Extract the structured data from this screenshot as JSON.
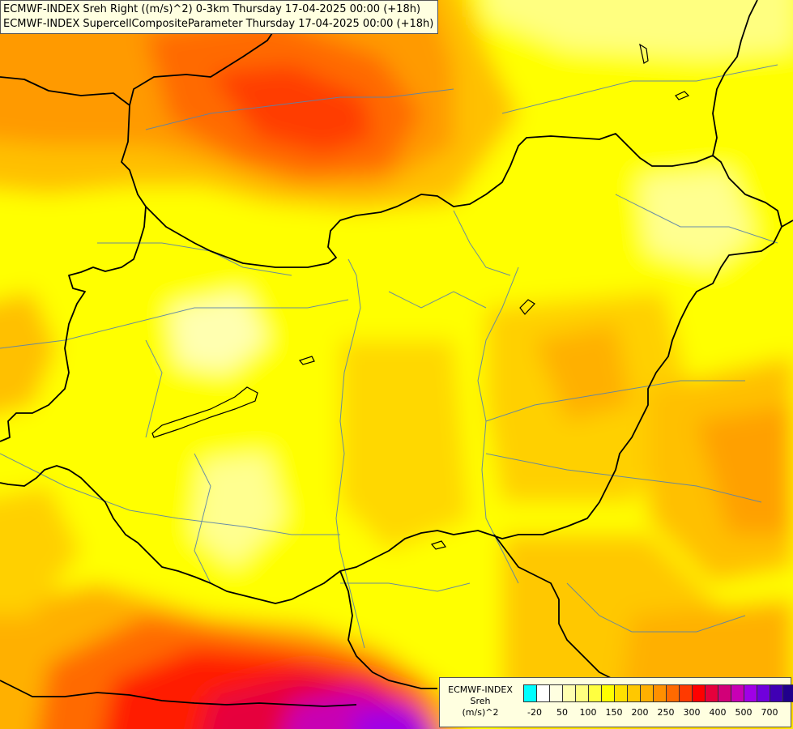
{
  "titles": [
    "ECMWF-INDEX Sreh Right ((m/s)^2) 0-3km Thursday 17-04-2025 00:00 (+18h)",
    "ECMWF-INDEX SupercellCompositeParameter Thursday 17-04-2025 00:00 (+18h)"
  ],
  "legend": {
    "line1": "ECMWF-INDEX",
    "line2": "Sreh",
    "line3": "(m/s)^2",
    "colors": [
      "#00ffff",
      "#ffffff",
      "#ffffe0",
      "#ffffb0",
      "#ffff80",
      "#ffff40",
      "#ffff00",
      "#ffe000",
      "#ffc800",
      "#ffb000",
      "#ff9000",
      "#ff6a00",
      "#ff3a00",
      "#ff0000",
      "#e6003c",
      "#d20078",
      "#c800b4",
      "#a000e6",
      "#7000dc",
      "#4000b4",
      "#20008c",
      "#000078"
    ],
    "ticks": [
      "-20",
      "50",
      "100",
      "150",
      "200",
      "250",
      "300",
      "400",
      "500",
      "700"
    ]
  }
}
